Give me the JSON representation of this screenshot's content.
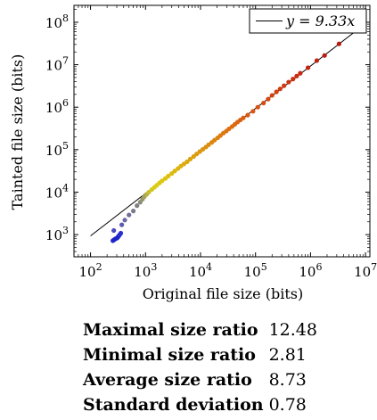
{
  "chart_data": {
    "type": "scatter",
    "title": "",
    "xlabel": "Original file size (bits)",
    "ylabel": "Tainted file size (bits)",
    "x_scale": "log",
    "y_scale": "log",
    "xlim": [
      50,
      12000000
    ],
    "ylim": [
      300,
      250000000
    ],
    "x_ticks": [
      100,
      1000,
      10000,
      100000,
      1000000,
      10000000
    ],
    "x_tick_labels": [
      "10^2",
      "10^3",
      "10^4",
      "10^5",
      "10^6",
      "10^7"
    ],
    "y_ticks": [
      1000,
      10000,
      100000,
      1000000,
      10000000,
      100000000
    ],
    "y_tick_labels": [
      "10^3",
      "10^4",
      "10^5",
      "10^6",
      "10^7",
      "10^8"
    ],
    "grid": false,
    "legend_position": "top-right",
    "colormap": "blue-gray-yellow-orange-red by ratio",
    "fit_line": {
      "label": "y = 9.33x",
      "slope": 9.33,
      "x_range": [
        100,
        10000000
      ]
    },
    "points": [
      {
        "x": 255,
        "y": 720,
        "color": "#1f24c8"
      },
      {
        "x": 270,
        "y": 760,
        "color": "#1f24c8"
      },
      {
        "x": 285,
        "y": 800,
        "color": "#1f24c8"
      },
      {
        "x": 300,
        "y": 820,
        "color": "#1f24c8"
      },
      {
        "x": 310,
        "y": 850,
        "color": "#1f24c8"
      },
      {
        "x": 320,
        "y": 900,
        "color": "#1f24c8"
      },
      {
        "x": 330,
        "y": 950,
        "color": "#1f24c8"
      },
      {
        "x": 340,
        "y": 1000,
        "color": "#2a2ed0"
      },
      {
        "x": 355,
        "y": 1080,
        "color": "#2a2ed0"
      },
      {
        "x": 265,
        "y": 1250,
        "color": "#4a4ac0"
      },
      {
        "x": 370,
        "y": 1700,
        "color": "#5a5ab0"
      },
      {
        "x": 420,
        "y": 2200,
        "color": "#6a6aa8"
      },
      {
        "x": 500,
        "y": 2900,
        "color": "#6e6e9a"
      },
      {
        "x": 600,
        "y": 3600,
        "color": "#7a7a8c"
      },
      {
        "x": 700,
        "y": 4800,
        "color": "#808080"
      },
      {
        "x": 800,
        "y": 5800,
        "color": "#8a8a78"
      },
      {
        "x": 880,
        "y": 6800,
        "color": "#96966a"
      },
      {
        "x": 950,
        "y": 7800,
        "color": "#a6a25a"
      },
      {
        "x": 1050,
        "y": 8900,
        "color": "#b8b040"
      },
      {
        "x": 1150,
        "y": 10000,
        "color": "#c8c030"
      },
      {
        "x": 1300,
        "y": 11500,
        "color": "#d4c820"
      },
      {
        "x": 1450,
        "y": 13000,
        "color": "#d8cc18"
      },
      {
        "x": 1600,
        "y": 14500,
        "color": "#dccc14"
      },
      {
        "x": 1800,
        "y": 16500,
        "color": "#dcc812"
      },
      {
        "x": 2000,
        "y": 18500,
        "color": "#dcc812"
      },
      {
        "x": 2300,
        "y": 21000,
        "color": "#dcc410"
      },
      {
        "x": 2600,
        "y": 24000,
        "color": "#dcc010"
      },
      {
        "x": 3000,
        "y": 27500,
        "color": "#dcbc10"
      },
      {
        "x": 3400,
        "y": 31500,
        "color": "#dcb810"
      },
      {
        "x": 3900,
        "y": 36000,
        "color": "#dcb410"
      },
      {
        "x": 4400,
        "y": 41000,
        "color": "#dcb010"
      },
      {
        "x": 5000,
        "y": 46000,
        "color": "#dcac10"
      },
      {
        "x": 5700,
        "y": 52000,
        "color": "#dca810"
      },
      {
        "x": 6500,
        "y": 60000,
        "color": "#dca410"
      },
      {
        "x": 7500,
        "y": 69000,
        "color": "#dca010"
      },
      {
        "x": 8500,
        "y": 79000,
        "color": "#dc9c10"
      },
      {
        "x": 9700,
        "y": 90000,
        "color": "#dc9810"
      },
      {
        "x": 11000,
        "y": 102000,
        "color": "#dc9410"
      },
      {
        "x": 12500,
        "y": 115000,
        "color": "#dc9010"
      },
      {
        "x": 14000,
        "y": 130000,
        "color": "#dc8c10"
      },
      {
        "x": 16000,
        "y": 148000,
        "color": "#dc8810"
      },
      {
        "x": 18000,
        "y": 168000,
        "color": "#dc8410"
      },
      {
        "x": 20500,
        "y": 190000,
        "color": "#dc8010"
      },
      {
        "x": 23000,
        "y": 215000,
        "color": "#dc7c10"
      },
      {
        "x": 26000,
        "y": 245000,
        "color": "#dc7810"
      },
      {
        "x": 29500,
        "y": 275000,
        "color": "#dc7410"
      },
      {
        "x": 33000,
        "y": 310000,
        "color": "#dc7010"
      },
      {
        "x": 37500,
        "y": 350000,
        "color": "#dc6c10"
      },
      {
        "x": 42000,
        "y": 395000,
        "color": "#dc6810"
      },
      {
        "x": 47000,
        "y": 445000,
        "color": "#dc6410"
      },
      {
        "x": 53000,
        "y": 500000,
        "color": "#dc6010"
      },
      {
        "x": 60000,
        "y": 560000,
        "color": "#dc5c10"
      },
      {
        "x": 72000,
        "y": 650000,
        "color": "#dc5810"
      },
      {
        "x": 90000,
        "y": 800000,
        "color": "#dc5410"
      },
      {
        "x": 110000,
        "y": 1000000,
        "color": "#dc5010"
      },
      {
        "x": 140000,
        "y": 1250000,
        "color": "#d84c10"
      },
      {
        "x": 170000,
        "y": 1550000,
        "color": "#d84810"
      },
      {
        "x": 200000,
        "y": 1900000,
        "color": "#d44410"
      },
      {
        "x": 240000,
        "y": 2300000,
        "color": "#d44010"
      },
      {
        "x": 280000,
        "y": 2700000,
        "color": "#d03c10"
      },
      {
        "x": 330000,
        "y": 3200000,
        "color": "#d03810"
      },
      {
        "x": 400000,
        "y": 3900000,
        "color": "#cc3410"
      },
      {
        "x": 480000,
        "y": 4600000,
        "color": "#cc3010"
      },
      {
        "x": 560000,
        "y": 5400000,
        "color": "#c82c10"
      },
      {
        "x": 650000,
        "y": 6300000,
        "color": "#c82810"
      },
      {
        "x": 900000,
        "y": 8500000,
        "color": "#c42410"
      },
      {
        "x": 1300000,
        "y": 12500000,
        "color": "#c02010"
      },
      {
        "x": 1800000,
        "y": 16500000,
        "color": "#bc1c10"
      },
      {
        "x": 3300000,
        "y": 31000000,
        "color": "#b81810"
      }
    ]
  },
  "legend": {
    "label": "y = 9.33x"
  },
  "stats": [
    {
      "label": "Maximal size ratio",
      "value": "12.48"
    },
    {
      "label": "Minimal size ratio",
      "value": "2.81"
    },
    {
      "label": "Average size ratio",
      "value": "8.73"
    },
    {
      "label": "Standard deviation",
      "value": "0.78"
    }
  ]
}
